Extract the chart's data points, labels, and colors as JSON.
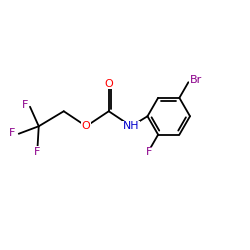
{
  "background": "#ffffff",
  "figsize": [
    2.5,
    2.5
  ],
  "dpi": 100,
  "bond_color": "#000000",
  "bond_width": 1.3,
  "F_color": "#8B008B",
  "Br_color": "#8B008B",
  "O_color": "#FF0000",
  "N_color": "#0000CD",
  "xlim": [
    0,
    10
  ],
  "ylim": [
    0,
    10
  ]
}
